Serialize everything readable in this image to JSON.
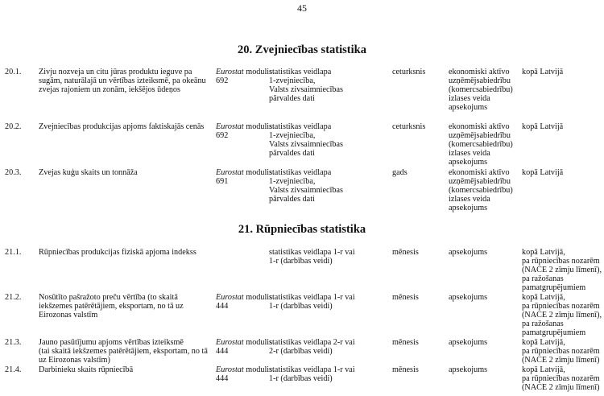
{
  "page_number": "45",
  "sections": [
    {
      "title": "20. Zvejniecības statistika",
      "rows": [
        {
          "num": "20.1.",
          "indicator": "Zivju nozveja un citu jūras produktu ieguve pa\nsugām, naturālajā un vērtības izteiksmē, pa okeānu\nzvejas rajoniem un zonām, iekšējos ūdeņos",
          "source_italic": "Eurostat",
          "source_rest": " modulis\n692",
          "form": "statistikas veidlapa\n1-zvejniecība,\nValsts zivsaimniecības\npārvaldes dati",
          "frequency": "ceturksnis",
          "method": "ekonomiski aktīvo\nuzņēmējsabiedrību\n(komercsabiedrību)\nizlases veida\napsekojums",
          "level": "kopā Latvijā"
        },
        {
          "num": "20.2.",
          "indicator": "Zvejniecības produkcijas apjoms faktiskajās cenās",
          "source_italic": "Eurostat",
          "source_rest": " modulis\n692",
          "form": "statistikas veidlapa\n1-zvejniecība,\nValsts zivsaimniecības\npārvaldes dati",
          "frequency": "ceturksnis",
          "method": "ekonomiski aktīvo\nuzņēmējsabiedrību\n(komercsabiedrību)\nizlases veida\napsekojums",
          "level": "kopā Latvijā"
        },
        {
          "num": "20.3.",
          "indicator": "Zvejas kuģu skaits un tonnāža",
          "source_italic": "Eurostat",
          "source_rest": " modulis\n691",
          "form": "statistikas veidlapa\n1-zvejniecība,\nValsts zivsaimniecības\npārvaldes dati",
          "frequency": "gads",
          "method": "ekonomiski aktīvo\nuzņēmējsabiedrību\n(komercsabiedrību)\nizlases veida\napsekojums",
          "level": "kopā Latvijā"
        }
      ]
    },
    {
      "title": "21. Rūpniecības statistika",
      "rows": [
        {
          "num": "21.1.",
          "indicator": "Rūpniecības produkcijas fiziskā apjoma indekss",
          "source_italic": "",
          "source_rest": "",
          "form": "statistikas veidlapa 1-r vai\n1-r (darbības veidi)",
          "frequency": "mēnesis",
          "method": "apsekojums",
          "level": "kopā Latvijā,\npa rūpniecības nozarēm\n(NACE 2 zīmju līmenī),\npa ražošanas\npamatgrupējumiem"
        },
        {
          "num": "21.2.",
          "indicator": "Nosūtīto pašražoto preču vērtība (to skaitā\niekšzemes patērētājiem, eksportam, no tā uz\nEirozonas valstīm",
          "source_italic": "Eurostat",
          "source_rest": " modulis\n444",
          "form": "statistikas veidlapa 1-r vai\n1-r (darbības veidi)",
          "frequency": "mēnesis",
          "method": "apsekojums",
          "level": "kopā Latvijā,\npa rūpniecības nozarēm\n(NACE 2 zīmju līmenī),\npa ražošanas\npamatgrupējumiem"
        },
        {
          "num": "21.3.",
          "indicator": "Jauno pasūtījumu apjoms vērtības izteiksmē\n(tai skaitā iekšzemes patērētājiem, eksportam, no tā\nuz Eirozonas valstīm)",
          "source_italic": "Eurostat",
          "source_rest": " modulis\n444",
          "form": "statistikas veidlapa 2-r vai\n2-r (darbības veidi)",
          "frequency": "mēnesis",
          "method": "apsekojums",
          "level": "kopā Latvijā,\npa rūpniecības nozarēm\n(NACE 2 zīmju līmenī)"
        },
        {
          "num": "21.4.",
          "indicator": "Darbinieku skaits rūpniecībā",
          "source_italic": "Eurostat",
          "source_rest": " modulis\n444",
          "form": "statistikas veidlapa 1-r vai\n1-r (darbības veidi)",
          "frequency": "mēnesis",
          "method": "apsekojums",
          "level": "kopā Latvijā,\npa rūpniecības nozarēm\n(NACE 2 zīmju līmenī)"
        }
      ]
    }
  ]
}
